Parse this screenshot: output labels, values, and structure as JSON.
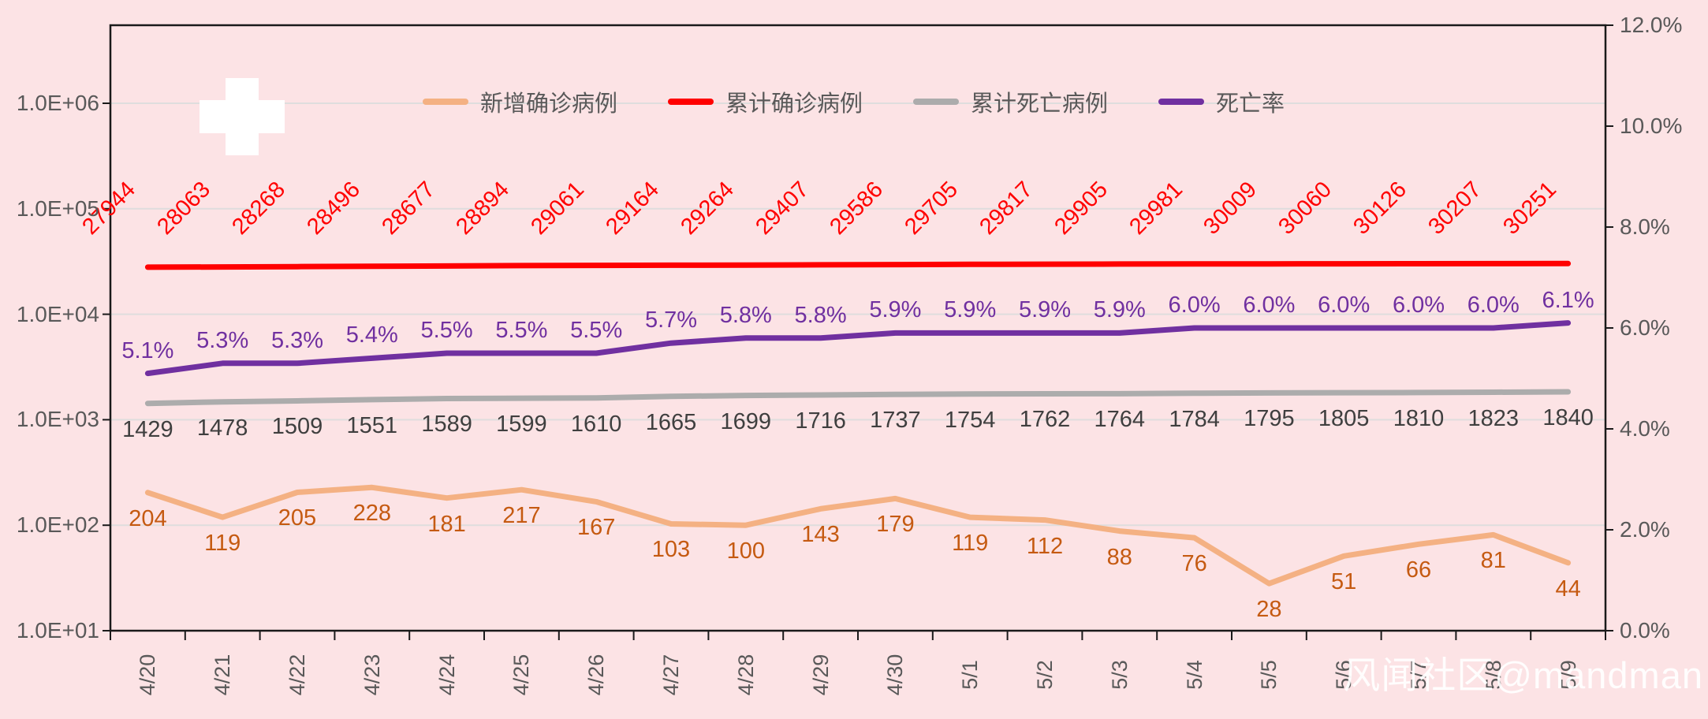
{
  "watermark": "风闻社区@mandman",
  "colors": {
    "background": "#FCE3E5",
    "flag_red": "#F20B0C",
    "grid": "#DFDDDD",
    "axis_line": "#1a1a1a",
    "axis_text": "#595959",
    "new_cases_line": "#F4B183",
    "new_cases_label": "#C55A11",
    "cumulative_line": "#FF0000",
    "cumulative_label": "#FF0000",
    "deaths_line": "#ACACAC",
    "deaths_label": "#3F3F3F",
    "rate_line": "#7030A0",
    "rate_label": "#7030A0"
  },
  "legend": [
    {
      "label": "新增确诊病例",
      "color": "#F4B183"
    },
    {
      "label": "累计确诊病例",
      "color": "#FF0000"
    },
    {
      "label": "累计死亡病例",
      "color": "#ACACAC"
    },
    {
      "label": "死亡率",
      "color": "#7030A0"
    }
  ],
  "chart_data": {
    "type": "line",
    "title": "",
    "x": [
      "4/20",
      "4/21",
      "4/22",
      "4/23",
      "4/24",
      "4/25",
      "4/26",
      "4/27",
      "4/28",
      "4/29",
      "4/30",
      "5/1",
      "5/2",
      "5/3",
      "5/4",
      "5/5",
      "5/6",
      "5/7",
      "5/8",
      "5/9"
    ],
    "series": [
      {
        "name": "新增确诊病例",
        "axis": "left-log",
        "color": "#F4B183",
        "values": [
          204,
          119,
          205,
          228,
          181,
          217,
          167,
          103,
          100,
          143,
          179,
          119,
          112,
          88,
          76,
          28,
          51,
          66,
          81,
          44
        ]
      },
      {
        "name": "累计确诊病例",
        "axis": "left-log",
        "color": "#FF0000",
        "values": [
          27944,
          28063,
          28268,
          28496,
          28677,
          28894,
          29061,
          29164,
          29264,
          29407,
          29586,
          29705,
          29817,
          29905,
          29981,
          30009,
          30060,
          30126,
          30207,
          30251
        ]
      },
      {
        "name": "累计死亡病例",
        "axis": "left-log",
        "color": "#ACACAC",
        "values": [
          1429,
          1478,
          1509,
          1551,
          1589,
          1599,
          1610,
          1665,
          1699,
          1716,
          1737,
          1754,
          1762,
          1764,
          1784,
          1795,
          1805,
          1810,
          1823,
          1840
        ]
      },
      {
        "name": "死亡率",
        "axis": "right-pct",
        "color": "#7030A0",
        "values": [
          5.1,
          5.3,
          5.3,
          5.4,
          5.5,
          5.5,
          5.5,
          5.7,
          5.8,
          5.8,
          5.9,
          5.9,
          5.9,
          5.9,
          6.0,
          6.0,
          6.0,
          6.0,
          6.0,
          6.1
        ],
        "labels": [
          "5.1%",
          "5.3%",
          "5.3%",
          "5.4%",
          "5.5%",
          "5.5%",
          "5.5%",
          "5.7%",
          "5.8%",
          "5.8%",
          "5.9%",
          "5.9%",
          "5.9%",
          "5.9%",
          "6.0%",
          "6.0%",
          "6.0%",
          "6.0%",
          "6.0%",
          "6.1%"
        ]
      }
    ],
    "left_axis": {
      "scale": "log",
      "ticks": [
        "1.0E+06",
        "1.0E+05",
        "1.0E+04",
        "1.0E+03",
        "1.0E+02",
        "1.0E+01"
      ]
    },
    "right_axis": {
      "scale": "linear",
      "ticks": [
        "12.0%",
        "10.0%",
        "8.0%",
        "6.0%",
        "4.0%",
        "2.0%",
        "0.0%"
      ],
      "range": [
        0,
        12
      ]
    },
    "grid": true,
    "legend_position": "top"
  }
}
